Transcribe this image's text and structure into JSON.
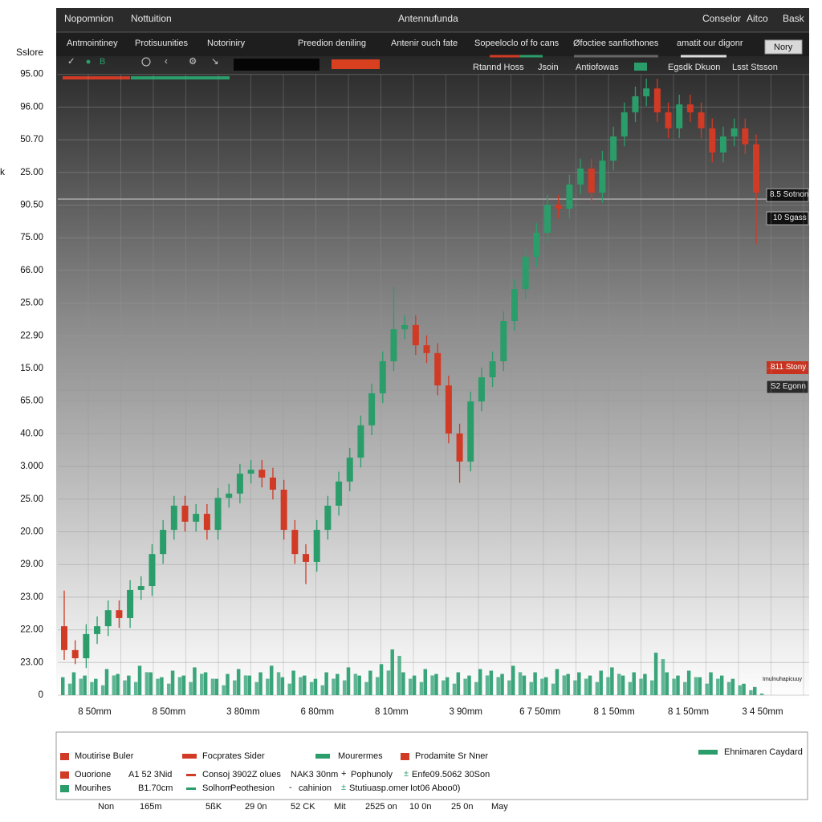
{
  "header": {
    "left": [
      "Nopomnion",
      "Nottuition"
    ],
    "center": "Antennufunda",
    "right": [
      "Conselor",
      "Aitco",
      "Bask"
    ]
  },
  "toolbar": {
    "tabs": [
      "Antmointiney",
      "Protisuunities",
      "Notoriniry",
      "Preedion deniling",
      "Antenir ouch fate",
      "Sopeeloclo of fo cans",
      "Øfoctiee sanfiothones",
      "amatit our digonr"
    ],
    "button": "Nory",
    "indicator": "B",
    "row2": [
      "Rtannd Hoss",
      "Jsoin",
      "Antiofowas",
      "Egsdk Dkuon",
      "Lsst Stsson"
    ]
  },
  "chart_data": {
    "type": "candlestick",
    "axis_title": "Sslore",
    "side_label": "k",
    "up_color": "#2a9d6a",
    "down_color": "#d13a25",
    "volume_color": "#3aa57a",
    "grid": true,
    "ylim": [
      0,
      19
    ],
    "yticks": [
      {
        "value": 19,
        "label": "95.00"
      },
      {
        "value": 18,
        "label": "96.00"
      },
      {
        "value": 17,
        "label": "50.70"
      },
      {
        "value": 16,
        "label": "25.00"
      },
      {
        "value": 15,
        "label": "90.50"
      },
      {
        "value": 14,
        "label": "75.00"
      },
      {
        "value": 13,
        "label": "66.00"
      },
      {
        "value": 12,
        "label": "25.00"
      },
      {
        "value": 11,
        "label": "22.90"
      },
      {
        "value": 10,
        "label": "15.00"
      },
      {
        "value": 9,
        "label": "65.00"
      },
      {
        "value": 8,
        "label": "40.00"
      },
      {
        "value": 7,
        "label": "3.000"
      },
      {
        "value": 6,
        "label": "25.00"
      },
      {
        "value": 5,
        "label": "20.00"
      },
      {
        "value": 4,
        "label": "29.00"
      },
      {
        "value": 3,
        "label": "23.00"
      },
      {
        "value": 2,
        "label": "22.00"
      },
      {
        "value": 1,
        "label": "23.00"
      },
      0
    ],
    "x_labels": [
      "8 50mm",
      "8 50mm",
      "3 80mm",
      "6 80mm",
      "8 10mm",
      "3 90mm",
      "6 7 50mm",
      "8 1 50mm",
      "8 1 50mm",
      "3 4 50mm"
    ],
    "price_tags": [
      "8.5 Sotnon",
      "10 Sgass",
      "811 Stony",
      "S2 Egonn"
    ],
    "volume_note": "Imulnuhapicuuy",
    "open": [
      2.11,
      1.38,
      1.13,
      1.87,
      2.11,
      2.6,
      2.36,
      3.22,
      3.34,
      4.32,
      5.06,
      5.8,
      5.31,
      5.55,
      5.06,
      6.04,
      6.17,
      6.78,
      6.9,
      6.66,
      6.29,
      5.06,
      4.32,
      4.08,
      5.06,
      5.8,
      6.54,
      7.27,
      8.26,
      9.24,
      10.22,
      11.2,
      11.33,
      10.71,
      10.47,
      9.48,
      8.01,
      7.15,
      8.99,
      9.73,
      10.22,
      11.45,
      12.43,
      13.42,
      14.15,
      15.01,
      14.89,
      15.63,
      16.12,
      15.38,
      16.36,
      17.1,
      17.84,
      18.33,
      18.57,
      17.84,
      17.35,
      18.08,
      17.84,
      17.35,
      16.61,
      17.1,
      17.35,
      16.86
    ],
    "high": [
      3.2,
      1.68,
      2.17,
      2.41,
      2.9,
      2.9,
      3.52,
      3.64,
      4.62,
      5.36,
      6.1,
      6.1,
      5.85,
      5.85,
      6.34,
      6.47,
      7.08,
      7.2,
      7.2,
      6.96,
      6.59,
      5.36,
      4.62,
      5.36,
      6.1,
      6.84,
      7.57,
      8.56,
      9.54,
      10.52,
      12.5,
      11.63,
      11.63,
      11.01,
      10.77,
      9.78,
      8.31,
      9.29,
      10.03,
      10.52,
      11.75,
      12.73,
      13.72,
      14.45,
      15.31,
      15.31,
      15.93,
      16.42,
      16.42,
      16.66,
      17.4,
      18.14,
      18.63,
      18.87,
      18.87,
      18.14,
      18.38,
      18.38,
      18.14,
      17.65,
      17.4,
      17.65,
      17.65,
      17.16
    ],
    "low": [
      1.08,
      0.95,
      0.83,
      1.57,
      1.81,
      2.06,
      2.06,
      2.92,
      3.04,
      4.02,
      4.76,
      5.01,
      5.01,
      4.76,
      4.76,
      5.74,
      5.87,
      6.48,
      6.36,
      5.99,
      4.76,
      4.02,
      3.4,
      3.78,
      4.76,
      5.5,
      6.24,
      6.97,
      7.96,
      8.94,
      9.92,
      10.9,
      10.41,
      10.17,
      9.18,
      7.71,
      6.5,
      6.85,
      8.69,
      9.43,
      9.92,
      11.15,
      12.13,
      13.12,
      13.85,
      14.59,
      14.59,
      15.33,
      15.08,
      15.08,
      16.06,
      16.8,
      17.54,
      18.03,
      17.54,
      17.05,
      17.05,
      17.54,
      17.05,
      16.31,
      16.31,
      16.8,
      16.56,
      13.8
    ],
    "close": [
      1.38,
      1.13,
      1.87,
      2.11,
      2.6,
      2.36,
      3.22,
      3.34,
      4.32,
      5.06,
      5.8,
      5.31,
      5.55,
      5.06,
      6.04,
      6.17,
      6.78,
      6.9,
      6.66,
      6.29,
      5.06,
      4.32,
      4.08,
      5.06,
      5.8,
      6.54,
      7.27,
      8.26,
      9.24,
      10.22,
      11.2,
      11.33,
      10.71,
      10.47,
      9.48,
      8.01,
      7.15,
      8.99,
      9.73,
      10.22,
      11.45,
      12.43,
      13.42,
      14.15,
      15.01,
      14.89,
      15.63,
      16.12,
      15.38,
      16.36,
      17.1,
      17.84,
      18.33,
      18.57,
      17.84,
      17.35,
      18.08,
      17.84,
      17.35,
      16.61,
      17.1,
      17.35,
      16.86,
      15.38
    ],
    "volume": [
      0.55,
      0.7,
      0.6,
      0.5,
      0.8,
      0.65,
      0.6,
      0.9,
      0.7,
      0.55,
      0.75,
      0.6,
      0.85,
      0.7,
      0.5,
      0.65,
      0.8,
      0.6,
      0.7,
      0.9,
      0.55,
      0.75,
      0.6,
      0.5,
      0.7,
      0.65,
      0.85,
      0.6,
      0.75,
      0.95,
      1.4,
      0.7,
      0.6,
      0.8,
      0.65,
      0.55,
      0.7,
      0.6,
      0.8,
      0.75,
      0.65,
      0.9,
      0.6,
      0.7,
      0.55,
      0.8,
      0.65,
      0.7,
      0.6,
      0.75,
      0.85,
      0.6,
      0.7,
      0.65,
      1.3,
      0.7,
      0.6,
      0.75,
      0.55,
      0.7,
      0.6,
      0.5,
      0.35,
      0.25
    ]
  },
  "legend": {
    "row1": [
      "Moutirise Buler",
      "Focprates Sider",
      "Mourermes",
      "Prodamite Sr Nner",
      "Ehnimaren Caydard"
    ],
    "row2": [
      "Ouorione",
      "A1 52 3Nid",
      "Consoj 3902Z olues",
      "NAK3 30nm",
      "Pophunoly",
      "Enfe09.5062 30Son"
    ],
    "row3": [
      "Mourihes",
      "B1.70cm",
      "Solhom",
      "Peothesion",
      "cahinion",
      "Stutiuasp.omer",
      "Iot06 Aboo0)"
    ],
    "row4": [
      "Non",
      "165m",
      "5ßK",
      "29 0n",
      "52 CK",
      "Mit",
      "2525 on",
      "10 0n",
      "25 0n",
      "May"
    ]
  }
}
